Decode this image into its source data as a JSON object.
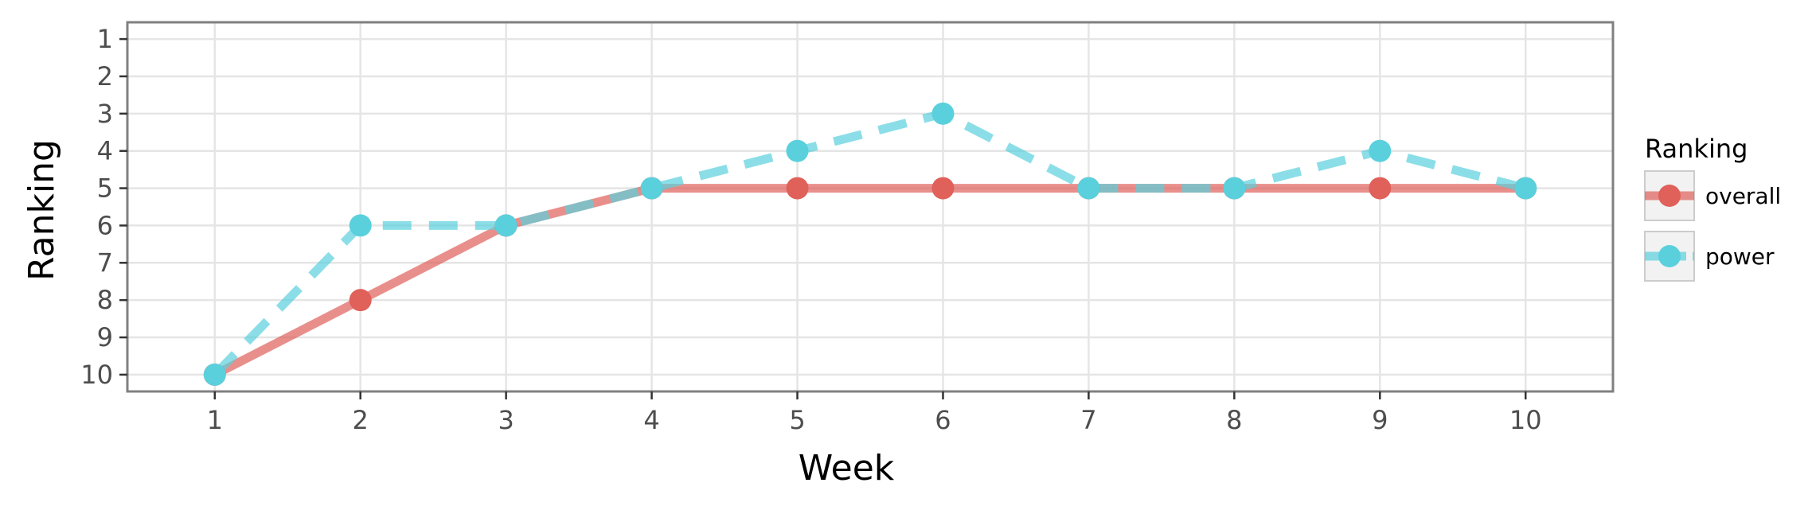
{
  "chart_data": {
    "type": "line",
    "xlabel": "Week",
    "ylabel": "Ranking",
    "x": [
      1,
      2,
      3,
      4,
      5,
      6,
      7,
      8,
      9,
      10
    ],
    "x_ticks": [
      "1",
      "2",
      "3",
      "4",
      "5",
      "6",
      "7",
      "8",
      "9",
      "10"
    ],
    "y_ticks": [
      "1",
      "2",
      "3",
      "4",
      "5",
      "6",
      "7",
      "8",
      "9",
      "10"
    ],
    "xlim": [
      0.4,
      10.6
    ],
    "ylim": [
      0.55,
      10.45
    ],
    "y_reversed": true,
    "grid": true,
    "legend": {
      "title": "Ranking",
      "placement": "right"
    },
    "series": [
      {
        "name": "overall",
        "values": [
          10,
          8,
          6,
          5,
          5,
          5,
          5,
          5,
          5,
          5
        ],
        "color": "#e0605a",
        "line_style": "solid"
      },
      {
        "name": "power",
        "values": [
          10,
          6,
          6,
          5,
          4,
          3,
          5,
          5,
          4,
          5
        ],
        "color": "#5ad0dd",
        "line_style": "dashed"
      }
    ]
  }
}
